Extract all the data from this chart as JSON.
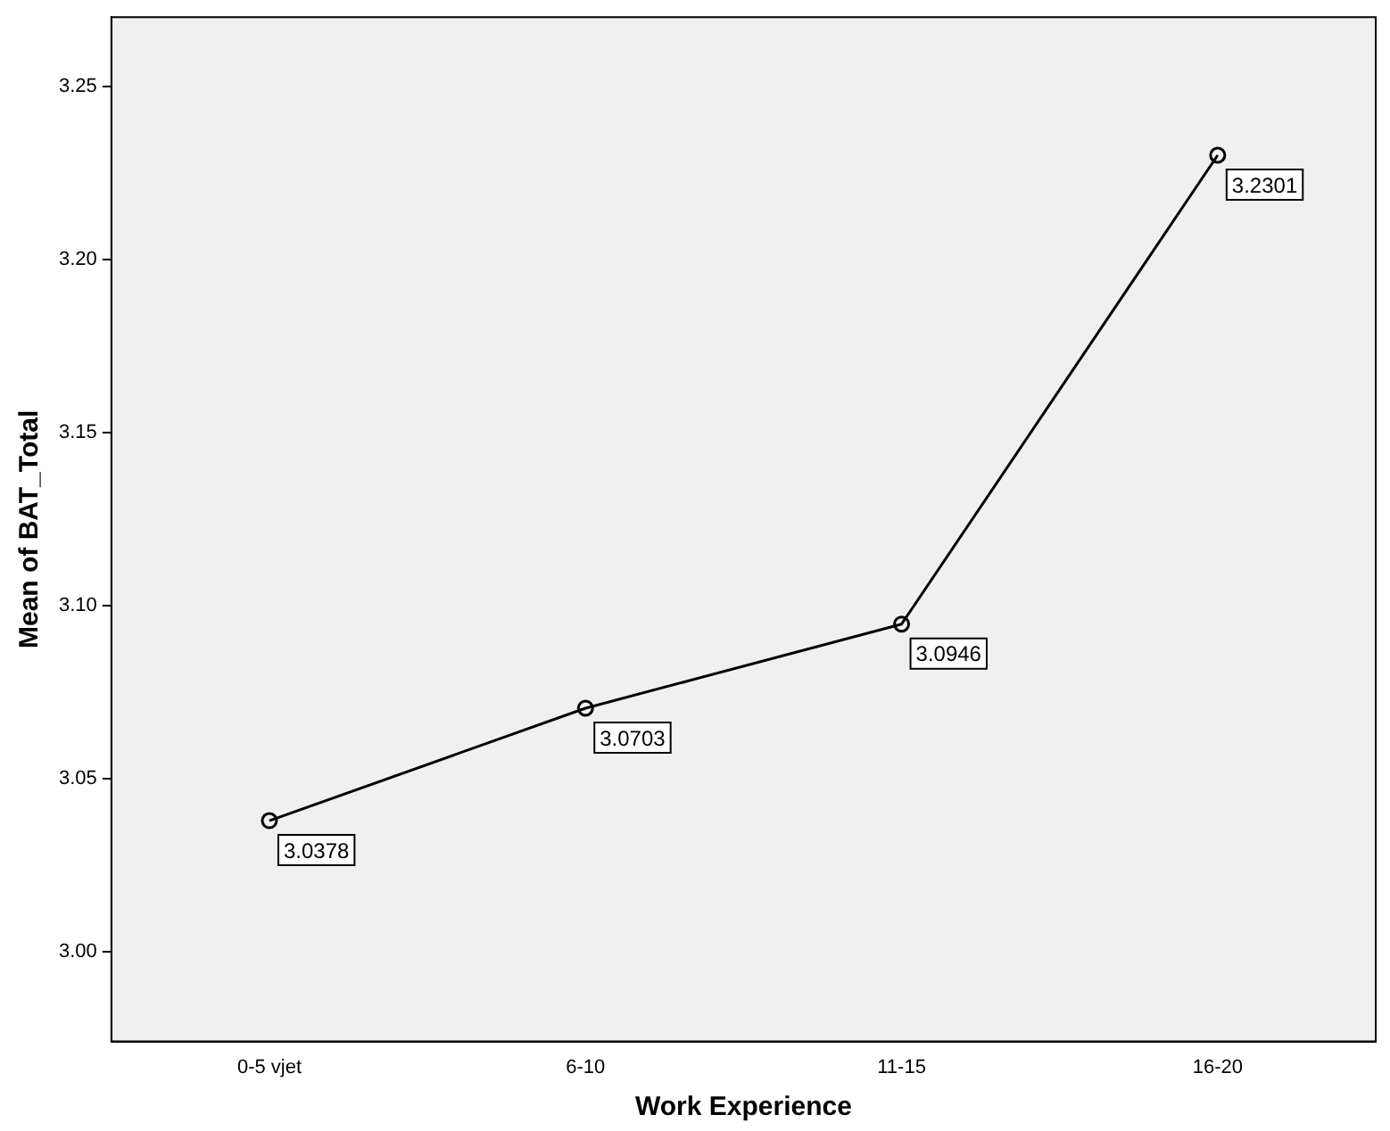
{
  "chart_data": {
    "type": "line",
    "xlabel": "Work Experience",
    "ylabel": "Mean of BAT_Total",
    "categories": [
      "0-5 vjet",
      "6-10",
      "11-15",
      "16-20"
    ],
    "series": [
      {
        "color": "#000000",
        "values": [
          3.0378,
          3.0703,
          3.0946,
          3.2301
        ]
      }
    ],
    "ylim": [
      2.974,
      3.27
    ],
    "yticks": [
      {
        "value": 3,
        "label": "3.00"
      },
      {
        "value": 3.05,
        "label": "3.05"
      },
      {
        "value": 3.1,
        "label": "3.10"
      },
      {
        "value": 3.15,
        "label": "3.15"
      },
      {
        "value": 3.2,
        "label": "3.20"
      },
      {
        "value": 3.25,
        "label": "3.25"
      }
    ],
    "grid": false,
    "legend": false,
    "marker": "circle",
    "line_style": "solid",
    "data_labels": true
  }
}
